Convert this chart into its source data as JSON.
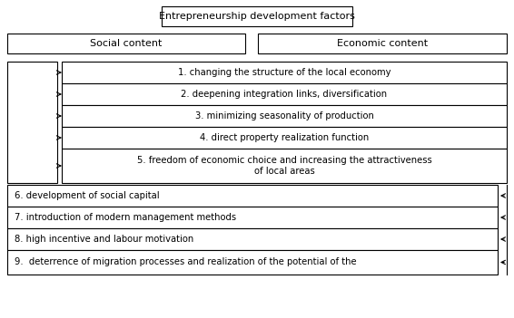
{
  "title_box": "Entrepreneurship development factors",
  "header_social": "Social content",
  "header_economic": "Economic content",
  "items_social": [
    "1. changing the structure of the local economy",
    "2. deepening integration links, diversification",
    "3. minimizing seasonality of production",
    "4. direct property realization function",
    "5. freedom of economic choice and increasing the attractiveness\nof local areas"
  ],
  "items_economic": [
    "6. development of social capital",
    "7. introduction of modern management methods",
    "8. high incentive and labour motivation",
    "9.  deterrence of migration processes and realization of the potential of the"
  ],
  "bg_color": "#ffffff",
  "text_color": "#000000",
  "fontsize": 7.2,
  "title_fontsize": 8.0
}
